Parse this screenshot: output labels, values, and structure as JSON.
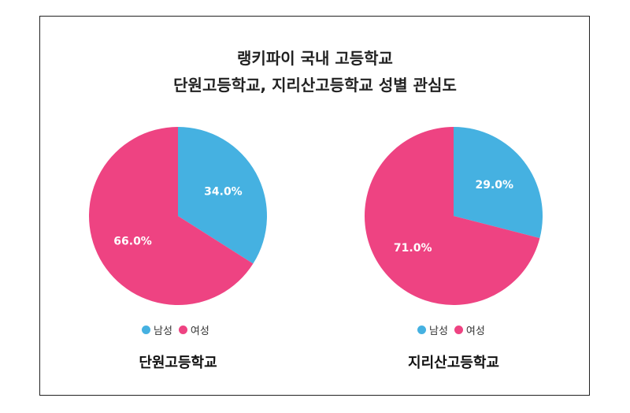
{
  "title": {
    "line1": "랭키파이 국내 고등학교",
    "line2": "단원고등학교, 지리산고등학교 성별 관심도"
  },
  "colors": {
    "male": "#45B1E1",
    "female": "#EE4382"
  },
  "chart_data": [
    {
      "type": "pie",
      "title": "단원고등학교",
      "labels": [
        "남성",
        "여성"
      ],
      "values": [
        34.0,
        66.0
      ],
      "data_labels": [
        "34.0%",
        "66.0%"
      ],
      "legend": [
        "남성",
        "여성"
      ],
      "legend_position": "bottom"
    },
    {
      "type": "pie",
      "title": "지리산고등학교",
      "labels": [
        "남성",
        "여성"
      ],
      "values": [
        29.0,
        71.0
      ],
      "data_labels": [
        "29.0%",
        "71.0%"
      ],
      "legend": [
        "남성",
        "여성"
      ],
      "legend_position": "bottom"
    }
  ]
}
